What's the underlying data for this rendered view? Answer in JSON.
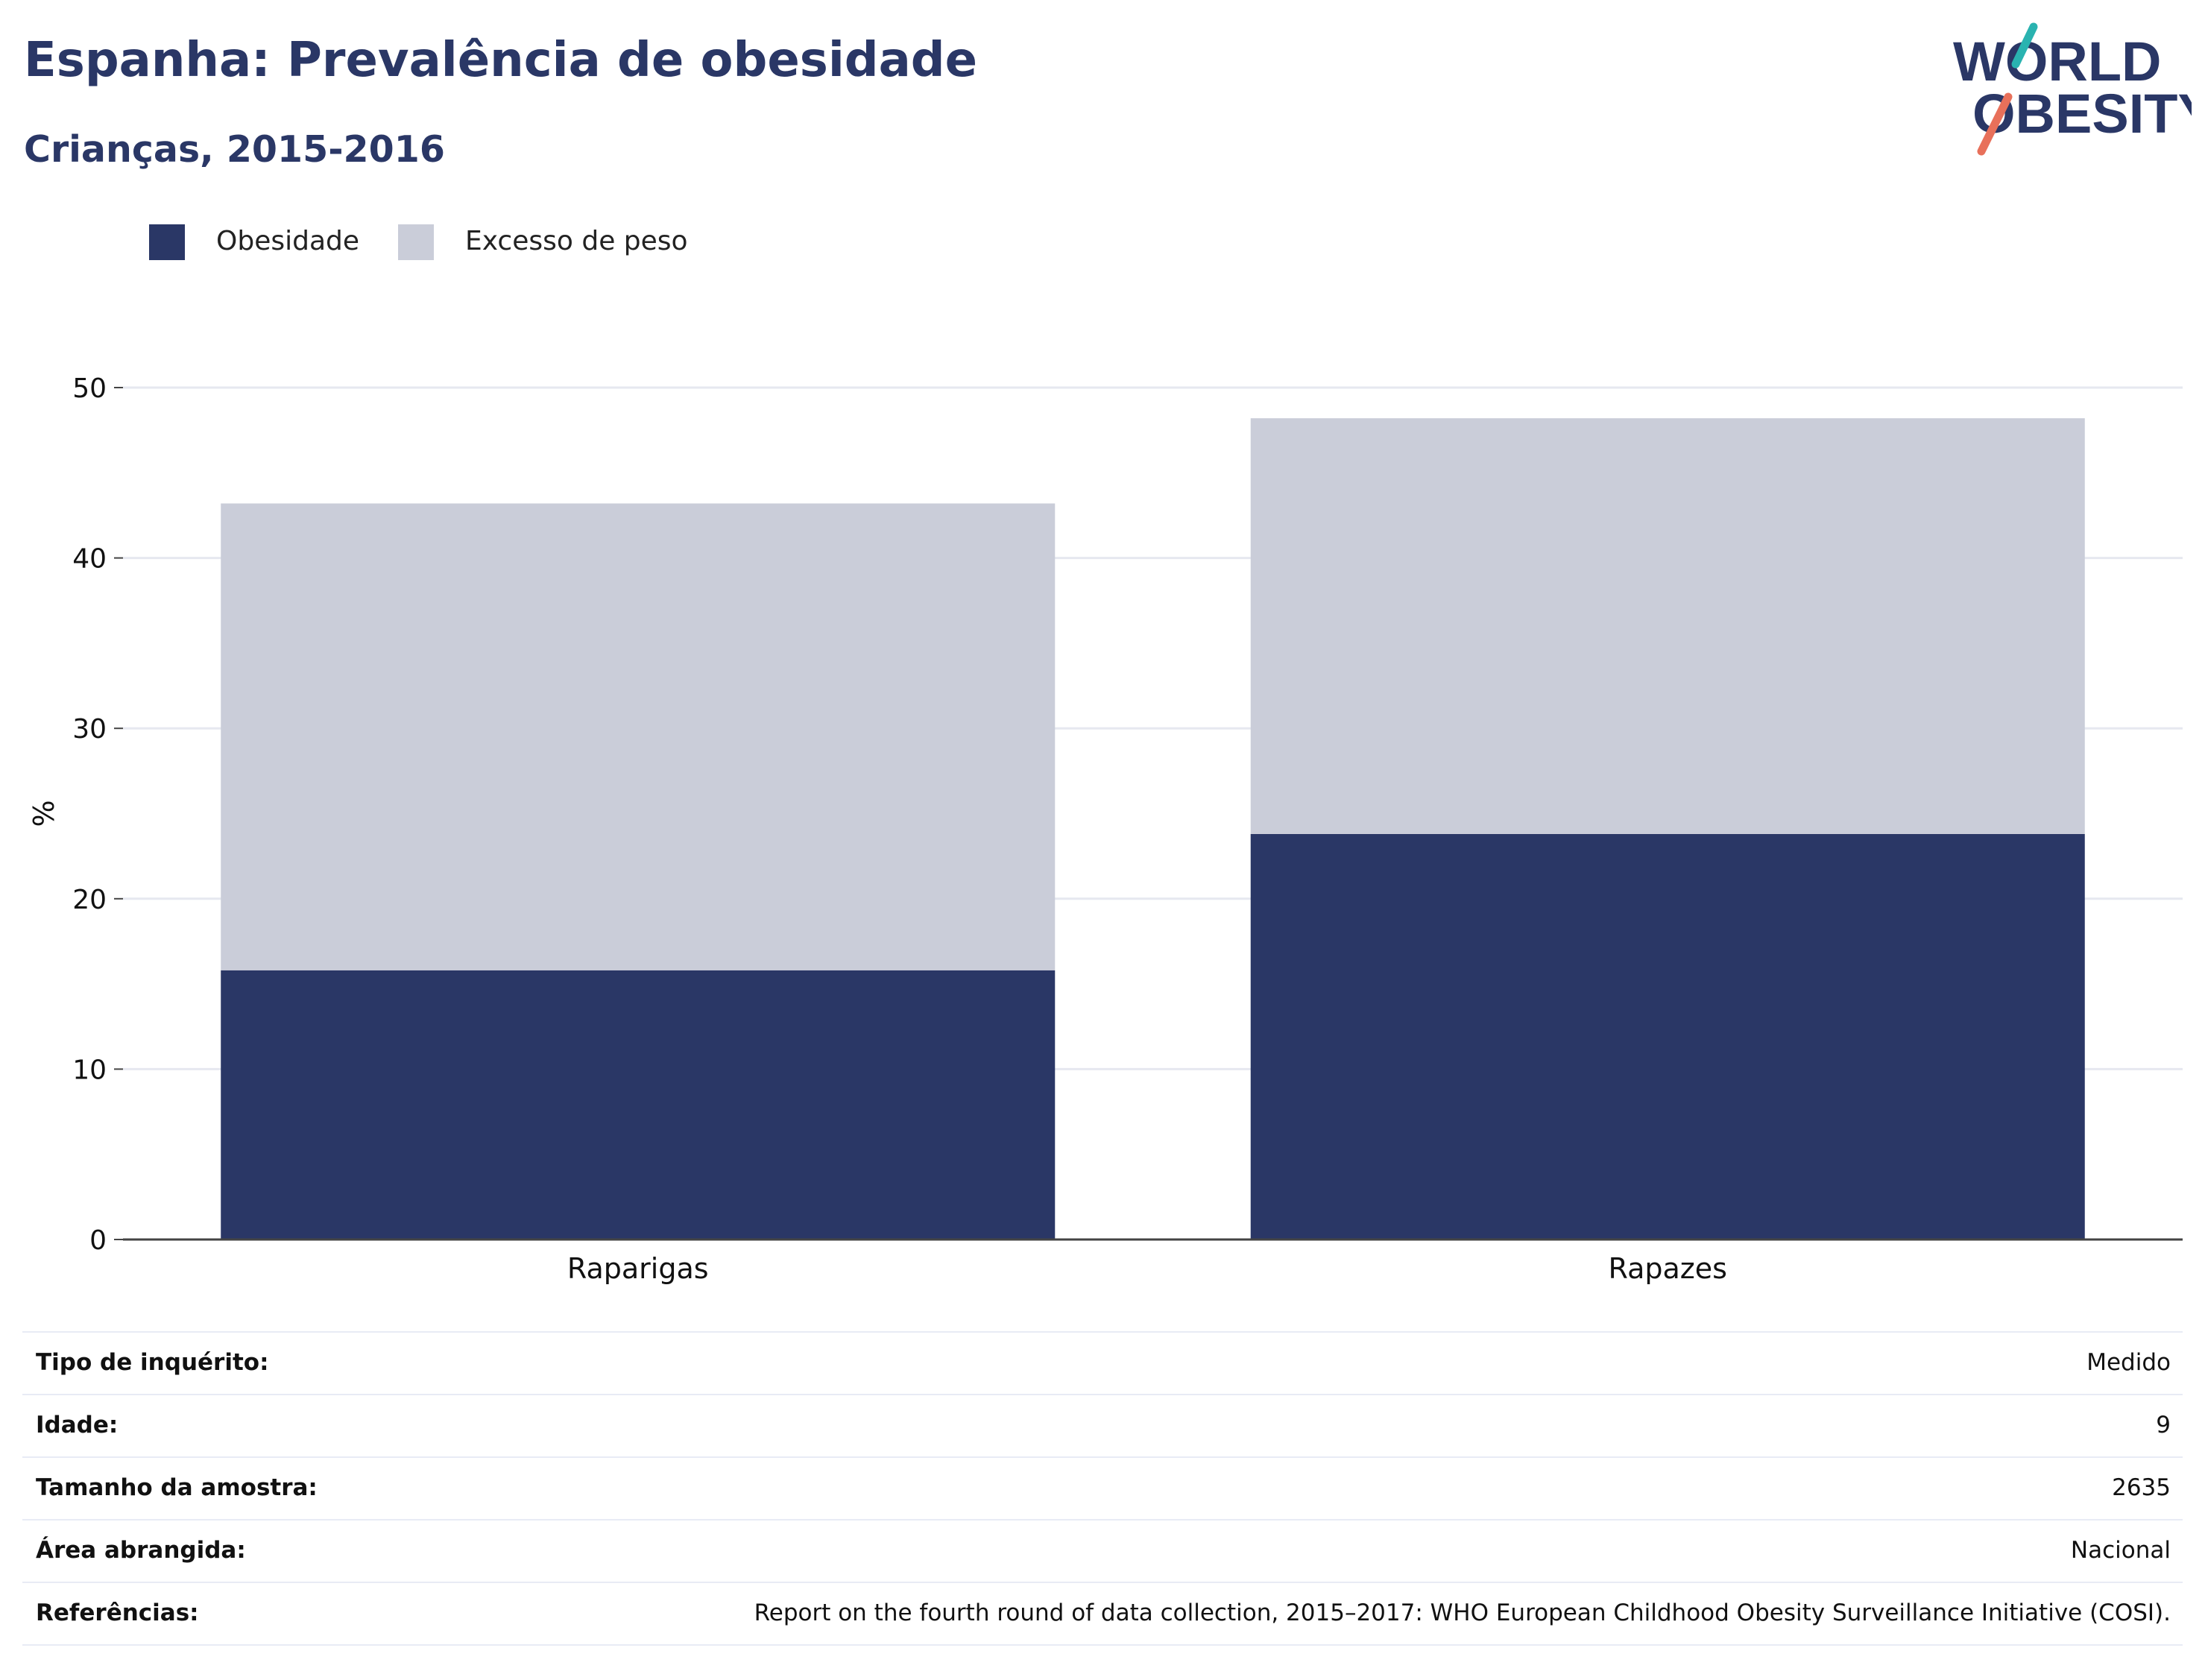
{
  "header": {
    "title": "Espanha: Prevalência de obesidade",
    "subtitle": "Crianças, 2015-2016"
  },
  "logo": {
    "line1": "WORLD",
    "line2": "OBESITY",
    "colors": {
      "text": "#2a3766",
      "accent_teal": "#2ab3b0",
      "accent_coral": "#e8705a"
    }
  },
  "colors": {
    "obesity": "#2a3766",
    "overweight": "#cacdd9",
    "grid": "#e6e8f0",
    "axis": "#444444"
  },
  "chart_data": {
    "type": "bar",
    "stacked": true,
    "categories": [
      "Raparigas",
      "Rapazes"
    ],
    "series": [
      {
        "name": "Obesidade",
        "values": [
          15.8,
          23.8
        ],
        "color": "#2a3766"
      },
      {
        "name": "Excesso de peso",
        "values": [
          27.4,
          24.4
        ],
        "color": "#cacdd9"
      }
    ],
    "ylabel": "%",
    "ylim": [
      0,
      50
    ],
    "yticks": [
      0,
      10,
      20,
      30,
      40,
      50
    ],
    "grid": true,
    "legend_position": "top-left"
  },
  "meta": [
    {
      "label": "Tipo de inquérito:",
      "value": "Medido"
    },
    {
      "label": "Idade:",
      "value": "9"
    },
    {
      "label": "Tamanho da amostra:",
      "value": "2635"
    },
    {
      "label": "Área abrangida:",
      "value": "Nacional"
    },
    {
      "label": "Referências:",
      "value": "Report on the fourth round of data collection, 2015–2017: WHO European Childhood Obesity Surveillance Initiative (COSI)."
    }
  ]
}
